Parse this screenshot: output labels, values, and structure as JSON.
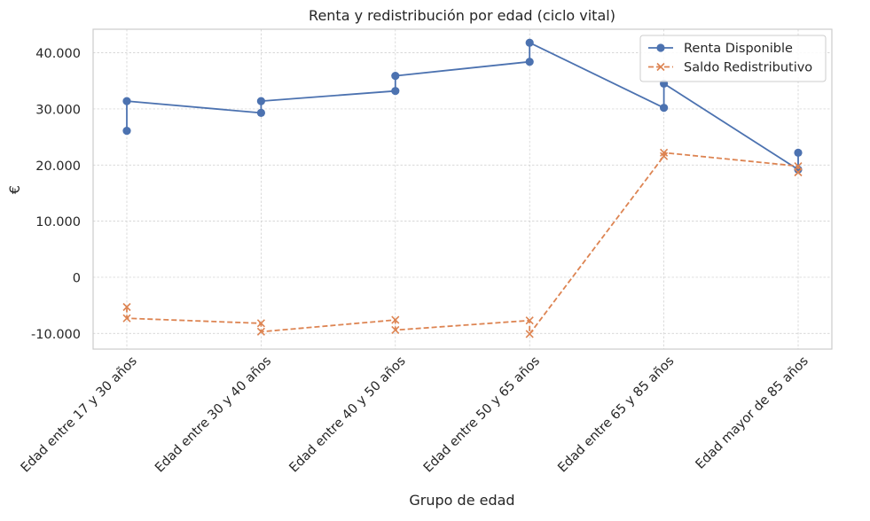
{
  "chart_data": {
    "type": "line",
    "title": "Renta y redistribución por edad (ciclo vital)",
    "xlabel": "Grupo de edad",
    "ylabel": "€",
    "categories": [
      "Edad entre 17 y 30 años",
      "Edad entre 30 y 40 años",
      "Edad entre 40 y 50 años",
      "Edad entre 50 y 65 años",
      "Edad entre 65 y 85 años",
      "Edad  mayor de 85 años"
    ],
    "ylim": [
      -12800,
      44200
    ],
    "yticks": [
      -10000,
      0,
      10000,
      20000,
      30000,
      40000
    ],
    "ytick_labels": [
      "-10.000",
      "0",
      "10.000",
      "20.000",
      "30.000",
      "40.000"
    ],
    "grid": true,
    "legend_position": "top-right",
    "series": [
      {
        "name": "Renta Disponible",
        "color": "#4c72b0",
        "marker": "circle",
        "linestyle": "solid",
        "points": [
          {
            "x": 0,
            "y": 26100
          },
          {
            "x": 0,
            "y": 31400
          },
          {
            "x": 1,
            "y": 29300
          },
          {
            "x": 1,
            "y": 31400
          },
          {
            "x": 2,
            "y": 33200
          },
          {
            "x": 2,
            "y": 35900
          },
          {
            "x": 3,
            "y": 38400
          },
          {
            "x": 3,
            "y": 41800
          },
          {
            "x": 4,
            "y": 30200
          },
          {
            "x": 4,
            "y": 34500
          },
          {
            "x": 5,
            "y": 19200
          },
          {
            "x": 5,
            "y": 22200
          }
        ]
      },
      {
        "name": "Saldo Redistributivo",
        "color": "#dd8452",
        "marker": "x",
        "linestyle": "dashed",
        "points": [
          {
            "x": 0,
            "y": -5300
          },
          {
            "x": 0,
            "y": -7300
          },
          {
            "x": 1,
            "y": -8200
          },
          {
            "x": 1,
            "y": -9700
          },
          {
            "x": 2,
            "y": -7600
          },
          {
            "x": 2,
            "y": -9400
          },
          {
            "x": 3,
            "y": -7700
          },
          {
            "x": 3,
            "y": -10100
          },
          {
            "x": 4,
            "y": 21600
          },
          {
            "x": 4,
            "y": 22200
          },
          {
            "x": 5,
            "y": 19800
          },
          {
            "x": 5,
            "y": 18700
          }
        ]
      }
    ]
  }
}
